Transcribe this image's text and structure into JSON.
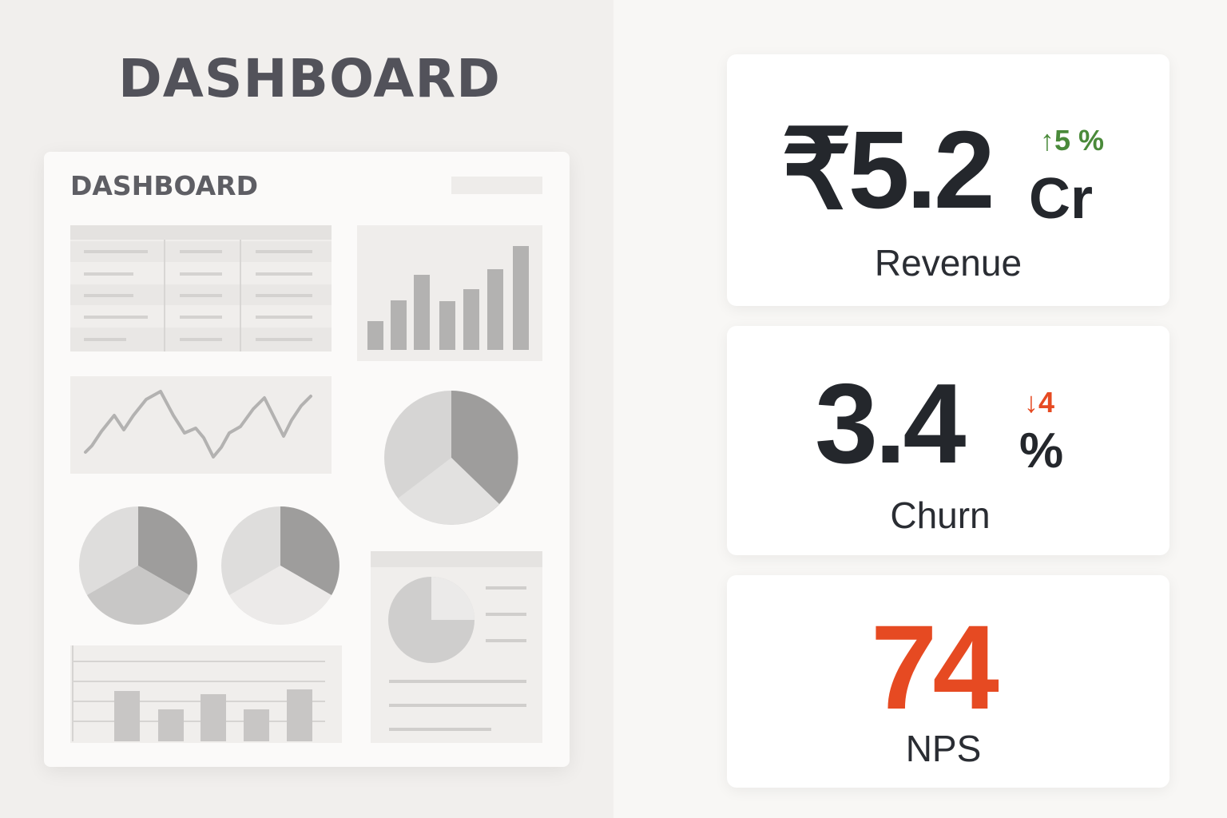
{
  "left": {
    "heading": "DASHBOARD",
    "doc_title": "DASHBOARD"
  },
  "kpis": {
    "revenue": {
      "value": "₹5.2",
      "unit": "Cr",
      "delta": "↑5 %",
      "label": "Revenue",
      "delta_color": "#4a8a3a"
    },
    "churn": {
      "value": "3.4",
      "unit": "%",
      "delta": "↓4",
      "label": "Churn",
      "delta_color": "#e64a22"
    },
    "nps": {
      "value": "74",
      "label": "NPS",
      "value_color": "#e64a22"
    }
  },
  "colors": {
    "value_text": "#24272c",
    "up": "#4a8a3a",
    "down": "#e64a22",
    "placeholder_gray": "#b0afae"
  }
}
